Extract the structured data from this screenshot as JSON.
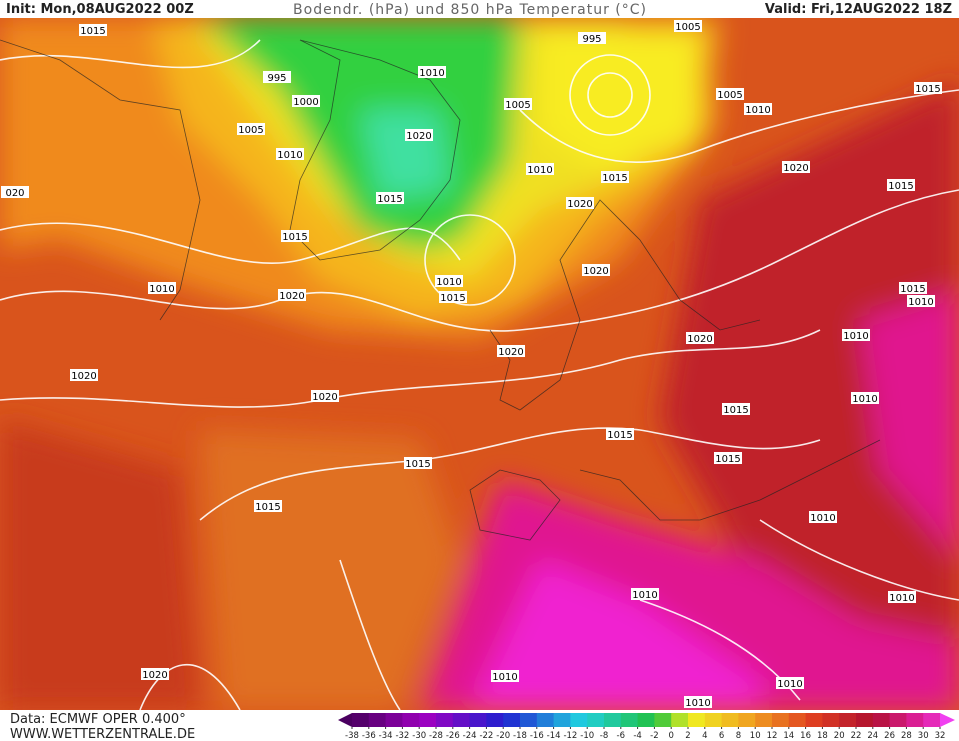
{
  "header": {
    "init": "Init: Mon,08AUG2022 00Z",
    "title": "Bodendr. (hPa) und 850 hPa Temperatur (°C)",
    "valid": "Valid: Fri,12AUG2022 18Z"
  },
  "footer": {
    "data": "Data: ECMWF OPER 0.400°",
    "site": "WWW.WETTERZENTRALE.DE"
  },
  "colorbar": {
    "ticks": [
      -38,
      -36,
      -34,
      -32,
      -30,
      -28,
      -26,
      -24,
      -22,
      -20,
      -18,
      -16,
      -14,
      -12,
      -10,
      -8,
      -6,
      -4,
      -2,
      0,
      2,
      4,
      6,
      8,
      10,
      12,
      14,
      16,
      18,
      20,
      22,
      24,
      26,
      28,
      30,
      32
    ]
  },
  "isobar_labels": [
    "1015",
    "995",
    "1000",
    "1005",
    "1010",
    "1010",
    "1020",
    "1015",
    "1015",
    "1010",
    "1015",
    "1020",
    "1005",
    "995",
    "1005",
    "1005",
    "1010",
    "1020",
    "1015",
    "1015",
    "1010",
    "1020",
    "1010",
    "1015",
    "1020",
    "1020",
    "1020",
    "1020",
    "1020",
    "1015",
    "1015",
    "1015",
    "1015",
    "1015",
    "1010",
    "1010",
    "1010",
    "1010",
    "1010",
    "1010",
    "1010",
    "1010",
    "1020",
    "1015",
    "1010",
    "020"
  ]
}
